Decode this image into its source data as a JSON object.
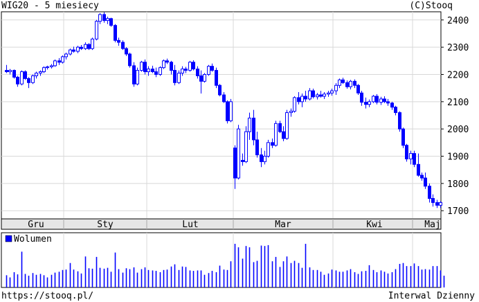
{
  "header": {
    "title": "WIG20 - 5 miesiecy",
    "credit": "(C)Stooq"
  },
  "footer": {
    "url": "https://stooq.pl/",
    "interval": "Interwal Dzienny"
  },
  "legend": {
    "volume_label": "Wolumen"
  },
  "colors": {
    "candle": "#0000ff",
    "grid": "#d8d8d8",
    "axis": "#000000",
    "month_band": "#e6e6e6",
    "volume": "#0000ff"
  },
  "chart_data": [
    {
      "type": "candlestick",
      "title": "WIG20 - 5 miesiecy",
      "ylim": [
        1670,
        2430
      ],
      "ytick_labels": [
        "1700",
        "1800",
        "1900",
        "2000",
        "2100",
        "2200",
        "2300",
        "2400"
      ],
      "xtick_labels": [
        "Gru",
        "Sty",
        "Lut",
        "Mar",
        "Kwi",
        "Maj"
      ],
      "grid": true,
      "ohlc": [
        [
          2215,
          2235,
          2205,
          2210
        ],
        [
          2210,
          2220,
          2200,
          2215
        ],
        [
          2215,
          2218,
          2185,
          2190
        ],
        [
          2190,
          2195,
          2155,
          2165
        ],
        [
          2165,
          2215,
          2160,
          2210
        ],
        [
          2210,
          2215,
          2180,
          2185
        ],
        [
          2185,
          2190,
          2150,
          2170
        ],
        [
          2170,
          2200,
          2165,
          2195
        ],
        [
          2195,
          2210,
          2185,
          2205
        ],
        [
          2205,
          2215,
          2195,
          2210
        ],
        [
          2210,
          2230,
          2205,
          2225
        ],
        [
          2225,
          2232,
          2218,
          2228
        ],
        [
          2228,
          2238,
          2222,
          2232
        ],
        [
          2232,
          2255,
          2228,
          2250
        ],
        [
          2250,
          2260,
          2235,
          2245
        ],
        [
          2245,
          2270,
          2240,
          2265
        ],
        [
          2265,
          2280,
          2255,
          2275
        ],
        [
          2275,
          2295,
          2270,
          2290
        ],
        [
          2290,
          2302,
          2280,
          2285
        ],
        [
          2285,
          2305,
          2278,
          2300
        ],
        [
          2300,
          2308,
          2290,
          2295
        ],
        [
          2295,
          2318,
          2290,
          2310
        ],
        [
          2310,
          2315,
          2290,
          2295
        ],
        [
          2295,
          2335,
          2290,
          2330
        ],
        [
          2330,
          2400,
          2325,
          2395
        ],
        [
          2395,
          2425,
          2385,
          2420
        ],
        [
          2420,
          2428,
          2390,
          2398
        ],
        [
          2398,
          2412,
          2385,
          2405
        ],
        [
          2405,
          2408,
          2375,
          2380
        ],
        [
          2380,
          2385,
          2318,
          2325
        ],
        [
          2325,
          2335,
          2305,
          2318
        ],
        [
          2318,
          2325,
          2290,
          2295
        ],
        [
          2295,
          2300,
          2268,
          2275
        ],
        [
          2275,
          2280,
          2225,
          2232
        ],
        [
          2232,
          2245,
          2155,
          2165
        ],
        [
          2165,
          2225,
          2160,
          2215
        ],
        [
          2215,
          2250,
          2210,
          2245
        ],
        [
          2245,
          2255,
          2200,
          2210
        ],
        [
          2210,
          2230,
          2195,
          2220
        ],
        [
          2220,
          2232,
          2205,
          2210
        ],
        [
          2210,
          2225,
          2190,
          2200
        ],
        [
          2200,
          2230,
          2195,
          2225
        ],
        [
          2225,
          2255,
          2220,
          2250
        ],
        [
          2250,
          2258,
          2238,
          2245
        ],
        [
          2245,
          2250,
          2200,
          2215
        ],
        [
          2215,
          2235,
          2160,
          2170
        ],
        [
          2170,
          2215,
          2165,
          2205
        ],
        [
          2205,
          2230,
          2195,
          2220
        ],
        [
          2220,
          2228,
          2205,
          2215
        ],
        [
          2215,
          2250,
          2210,
          2245
        ],
        [
          2245,
          2252,
          2215,
          2220
        ],
        [
          2220,
          2230,
          2185,
          2195
        ],
        [
          2195,
          2215,
          2130,
          2175
        ],
        [
          2175,
          2205,
          2170,
          2200
        ],
        [
          2200,
          2235,
          2195,
          2230
        ],
        [
          2230,
          2240,
          2210,
          2215
        ],
        [
          2215,
          2225,
          2150,
          2160
        ],
        [
          2160,
          2165,
          2120,
          2125
        ],
        [
          2125,
          2135,
          2095,
          2100
        ],
        [
          2100,
          2105,
          2020,
          2030
        ],
        [
          2030,
          2110,
          2025,
          2100
        ],
        [
          1930,
          1940,
          1780,
          1820
        ],
        [
          1820,
          2015,
          1815,
          2000
        ],
        [
          1885,
          1910,
          1865,
          1880
        ],
        [
          1880,
          2010,
          1875,
          1990
        ],
        [
          1990,
          2060,
          1960,
          2040
        ],
        [
          2040,
          2070,
          1940,
          1960
        ],
        [
          1960,
          1990,
          1895,
          1905
        ],
        [
          1905,
          1930,
          1860,
          1880
        ],
        [
          1880,
          1920,
          1870,
          1900
        ],
        [
          1900,
          1960,
          1895,
          1950
        ],
        [
          1950,
          1965,
          1930,
          1940
        ],
        [
          1940,
          2030,
          1935,
          2020
        ],
        [
          2020,
          2030,
          1985,
          1990
        ],
        [
          1990,
          2010,
          1955,
          1965
        ],
        [
          1965,
          2070,
          1960,
          2060
        ],
        [
          2060,
          2075,
          2045,
          2065
        ],
        [
          2065,
          2120,
          2060,
          2115
        ],
        [
          2115,
          2135,
          2090,
          2100
        ],
        [
          2100,
          2130,
          2080,
          2120
        ],
        [
          2120,
          2140,
          2100,
          2110
        ],
        [
          2110,
          2150,
          2105,
          2140
        ],
        [
          2140,
          2148,
          2112,
          2118
        ],
        [
          2118,
          2132,
          2108,
          2125
        ],
        [
          2125,
          2140,
          2115,
          2120
        ],
        [
          2120,
          2135,
          2110,
          2128
        ],
        [
          2128,
          2140,
          2118,
          2132
        ],
        [
          2132,
          2148,
          2122,
          2140
        ],
        [
          2140,
          2168,
          2125,
          2160
        ],
        [
          2160,
          2185,
          2150,
          2180
        ],
        [
          2180,
          2188,
          2165,
          2170
        ],
        [
          2170,
          2178,
          2148,
          2155
        ],
        [
          2155,
          2180,
          2145,
          2175
        ],
        [
          2175,
          2182,
          2150,
          2160
        ],
        [
          2160,
          2165,
          2125,
          2132
        ],
        [
          2132,
          2140,
          2085,
          2098
        ],
        [
          2098,
          2115,
          2075,
          2090
        ],
        [
          2090,
          2108,
          2080,
          2100
        ],
        [
          2100,
          2125,
          2095,
          2120
        ],
        [
          2120,
          2128,
          2090,
          2098
        ],
        [
          2098,
          2118,
          2088,
          2110
        ],
        [
          2110,
          2120,
          2095,
          2100
        ],
        [
          2100,
          2110,
          2085,
          2095
        ],
        [
          2095,
          2100,
          2070,
          2080
        ],
        [
          2080,
          2085,
          2050,
          2060
        ],
        [
          2060,
          2065,
          1990,
          2000
        ],
        [
          2000,
          2005,
          1930,
          1940
        ],
        [
          1940,
          1945,
          1880,
          1890
        ],
        [
          1890,
          1920,
          1870,
          1910
        ],
        [
          1910,
          1920,
          1860,
          1870
        ],
        [
          1870,
          1910,
          1825,
          1830
        ],
        [
          1830,
          1840,
          1810,
          1820
        ],
        [
          1820,
          1840,
          1780,
          1790
        ],
        [
          1790,
          1800,
          1730,
          1745
        ],
        [
          1745,
          1760,
          1715,
          1730
        ],
        [
          1730,
          1740,
          1710,
          1720
        ],
        [
          1720,
          1735,
          1710,
          1730
        ]
      ],
      "volume": [
        0.28,
        0.23,
        0.35,
        0.3,
        0.82,
        0.31,
        0.27,
        0.33,
        0.29,
        0.31,
        0.28,
        0.23,
        0.29,
        0.34,
        0.36,
        0.4,
        0.41,
        0.56,
        0.41,
        0.37,
        0.32,
        0.71,
        0.44,
        0.43,
        0.7,
        0.45,
        0.43,
        0.45,
        0.36,
        0.8,
        0.42,
        0.34,
        0.44,
        0.42,
        0.46,
        0.34,
        0.42,
        0.46,
        0.4,
        0.39,
        0.38,
        0.35,
        0.4,
        0.41,
        0.48,
        0.53,
        0.4,
        0.48,
        0.47,
        0.39,
        0.38,
        0.39,
        0.39,
        0.29,
        0.33,
        0.38,
        0.35,
        0.5,
        0.41,
        0.4,
        0.6,
        1.0,
        0.92,
        0.66,
        0.95,
        0.92,
        0.58,
        0.61,
        0.96,
        0.95,
        0.97,
        0.6,
        0.7,
        0.47,
        0.6,
        0.71,
        0.56,
        0.61,
        0.56,
        0.45,
        1.0,
        0.46,
        0.4,
        0.4,
        0.36,
        0.29,
        0.32,
        0.41,
        0.39,
        0.36,
        0.36,
        0.39,
        0.42,
        0.35,
        0.31,
        0.37,
        0.38,
        0.51,
        0.4,
        0.35,
        0.39,
        0.36,
        0.32,
        0.35,
        0.42,
        0.54,
        0.56,
        0.49,
        0.49,
        0.55,
        0.49,
        0.41,
        0.42,
        0.41,
        0.49,
        0.49,
        0.39,
        0.27
      ]
    }
  ]
}
